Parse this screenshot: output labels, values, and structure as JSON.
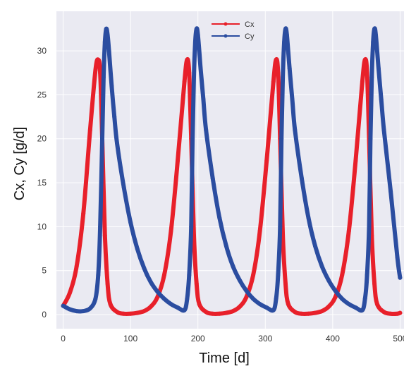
{
  "chart_data": {
    "type": "line",
    "title": "",
    "xlabel": "Time [d]",
    "ylabel": "Cx, Cy [g/d]",
    "xlim": [
      -10,
      510
    ],
    "ylim": [
      -1.6,
      34.5
    ],
    "x_ticks": [
      0,
      100,
      200,
      300,
      400,
      500
    ],
    "y_ticks": [
      0,
      5,
      10,
      15,
      20,
      25,
      30
    ],
    "grid": true,
    "background": "#eaeaf2",
    "legend_position": "top-center",
    "markers": "dots",
    "series": [
      {
        "name": "Cx",
        "color": "#e8202a",
        "x": [
          0,
          10,
          20,
          30,
          40,
          48,
          52,
          55,
          58,
          62,
          66,
          70,
          80,
          90,
          100,
          110,
          120,
          130,
          140,
          150,
          160,
          170,
          180,
          184,
          187,
          190,
          194,
          198,
          202,
          212,
          222,
          232,
          242,
          252,
          262,
          272,
          282,
          292,
          302,
          312,
          316,
          319,
          322,
          326,
          330,
          334,
          344,
          354,
          364,
          374,
          384,
          394,
          404,
          414,
          424,
          434,
          444,
          448,
          451,
          454,
          458,
          462,
          466,
          476,
          486,
          496,
          500
        ],
        "y": [
          1.0,
          2.5,
          5.5,
          11.5,
          21.0,
          27.8,
          29.0,
          27.5,
          20.0,
          9.0,
          3.5,
          1.2,
          0.3,
          0.1,
          0.1,
          0.2,
          0.4,
          0.9,
          2.0,
          4.5,
          9.5,
          17.5,
          26.5,
          29.0,
          27.5,
          20.0,
          9.0,
          3.5,
          1.2,
          0.3,
          0.1,
          0.1,
          0.2,
          0.4,
          0.9,
          2.0,
          4.5,
          9.5,
          17.5,
          26.5,
          29.0,
          27.5,
          20.0,
          9.0,
          3.5,
          1.2,
          0.3,
          0.1,
          0.1,
          0.2,
          0.4,
          0.9,
          2.0,
          4.5,
          9.5,
          17.5,
          26.5,
          29.0,
          27.5,
          20.0,
          9.0,
          3.5,
          1.2,
          0.3,
          0.1,
          0.1,
          0.2
        ]
      },
      {
        "name": "Cy",
        "color": "#2b4da0",
        "x": [
          0,
          10,
          20,
          30,
          40,
          48,
          52,
          55,
          58,
          60,
          62,
          64,
          66,
          68,
          72,
          76,
          80,
          90,
          100,
          110,
          120,
          130,
          140,
          150,
          160,
          170,
          180,
          184,
          187,
          190,
          192,
          194,
          196,
          198,
          200,
          204,
          208,
          212,
          222,
          232,
          242,
          252,
          262,
          272,
          282,
          292,
          302,
          312,
          316,
          319,
          322,
          324,
          326,
          328,
          330,
          332,
          336,
          340,
          344,
          354,
          364,
          374,
          384,
          394,
          404,
          414,
          424,
          434,
          444,
          448,
          451,
          454,
          456,
          458,
          460,
          462,
          464,
          468,
          472,
          476,
          486,
          496,
          500
        ],
        "y": [
          1.0,
          0.6,
          0.4,
          0.4,
          0.7,
          1.8,
          4.5,
          10.0,
          20.0,
          27.0,
          31.0,
          32.5,
          31.8,
          30.0,
          26.0,
          22.5,
          19.5,
          14.5,
          10.5,
          7.5,
          5.3,
          3.7,
          2.6,
          1.8,
          1.2,
          0.8,
          0.5,
          1.8,
          4.5,
          10.0,
          20.0,
          27.0,
          31.0,
          32.5,
          31.8,
          28.0,
          24.5,
          21.0,
          15.5,
          11.0,
          7.8,
          5.5,
          3.9,
          2.7,
          1.8,
          1.2,
          0.8,
          0.5,
          1.8,
          4.5,
          10.0,
          20.0,
          27.0,
          31.0,
          32.5,
          31.8,
          28.0,
          24.5,
          21.0,
          15.5,
          11.0,
          7.8,
          5.5,
          3.9,
          2.7,
          1.8,
          1.2,
          0.8,
          0.5,
          1.8,
          4.5,
          10.0,
          20.0,
          27.0,
          31.0,
          32.5,
          31.8,
          28.0,
          24.5,
          21.0,
          14.0,
          6.5,
          4.2
        ]
      }
    ]
  }
}
